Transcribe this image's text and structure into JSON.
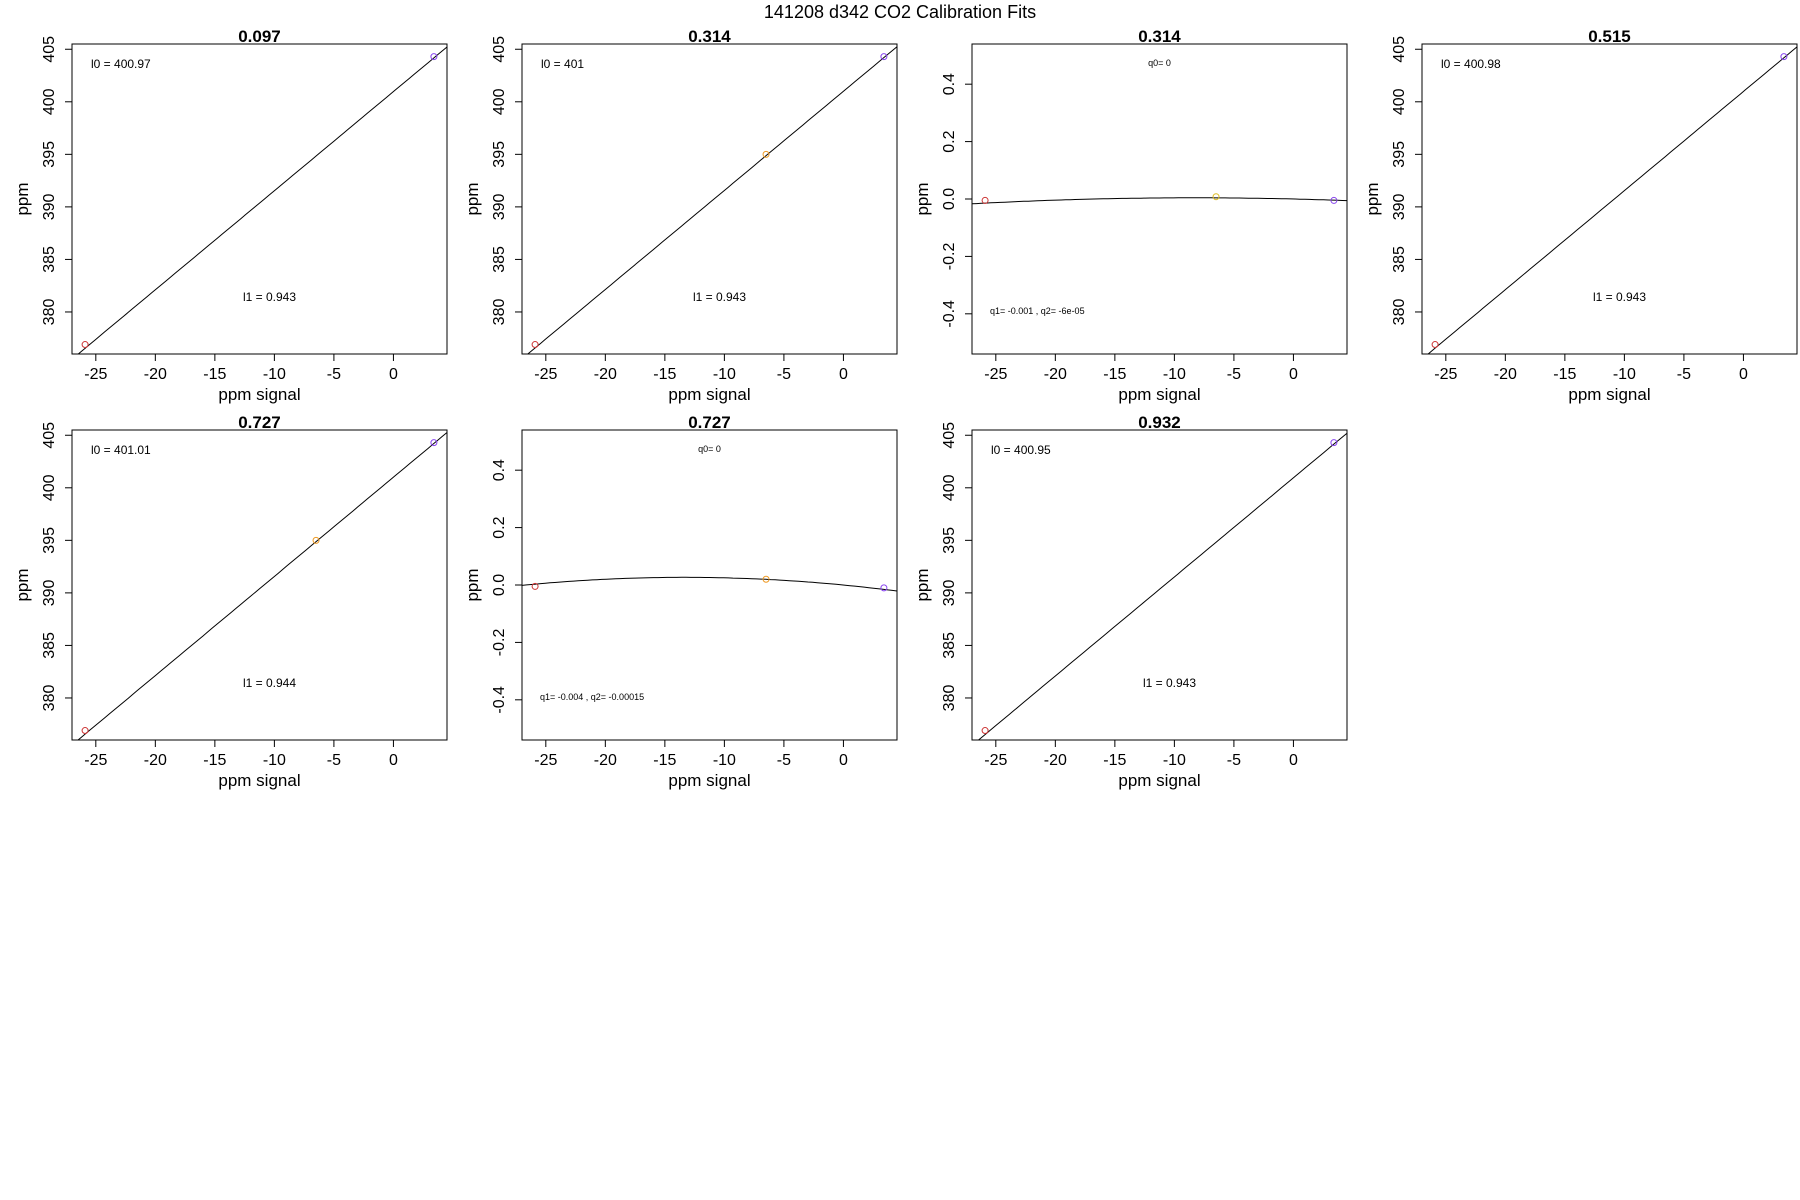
{
  "figure": {
    "title": "141208   d342   CO2 Calibration Fits"
  },
  "chart_data": [
    {
      "type": "line",
      "fit": "linear",
      "title": "0.097",
      "xlabel": "ppm signal",
      "ylabel": "ppm",
      "xlim": [
        -27,
        4.5
      ],
      "ylim": [
        376,
        405.5
      ],
      "xticks": [
        -25,
        -20,
        -15,
        -10,
        -5,
        0
      ],
      "yticks": [
        380,
        385,
        390,
        395,
        400,
        405
      ],
      "points": [
        {
          "x": -25.9,
          "y": 376.9,
          "color": "#cc3333"
        },
        {
          "x": 3.4,
          "y": 404.3,
          "color": "#8844ee"
        }
      ],
      "curve": {
        "intercept": 400.97,
        "slope": 0.943
      },
      "annotations": [
        {
          "text": "l0 =  400.97",
          "pos": "top-left"
        },
        {
          "text": "l1 =  0.943",
          "pos": "bottom-center"
        }
      ]
    },
    {
      "type": "line",
      "fit": "linear",
      "title": "0.314",
      "xlabel": "ppm signal",
      "ylabel": "ppm",
      "xlim": [
        -27,
        4.5
      ],
      "ylim": [
        376,
        405.5
      ],
      "xticks": [
        -25,
        -20,
        -15,
        -10,
        -5,
        0
      ],
      "yticks": [
        380,
        385,
        390,
        395,
        400,
        405
      ],
      "points": [
        {
          "x": -25.9,
          "y": 376.9,
          "color": "#cc3333"
        },
        {
          "x": -6.5,
          "y": 395.0,
          "color": "#ee9922"
        },
        {
          "x": 3.4,
          "y": 404.3,
          "color": "#8844ee"
        }
      ],
      "curve": {
        "intercept": 401,
        "slope": 0.943
      },
      "annotations": [
        {
          "text": "l0 =  401",
          "pos": "top-left"
        },
        {
          "text": "l1 =  0.943",
          "pos": "bottom-center"
        }
      ]
    },
    {
      "type": "line",
      "fit": "quadratic",
      "title": "0.314",
      "xlabel": "ppm signal",
      "ylabel": "ppm",
      "xlim": [
        -27,
        4.5
      ],
      "ylim": [
        -0.54,
        0.54
      ],
      "xticks": [
        -25,
        -20,
        -15,
        -10,
        -5,
        0
      ],
      "yticks": [
        -0.4,
        -0.2,
        0.0,
        0.2,
        0.4
      ],
      "points": [
        {
          "x": -25.9,
          "y": -0.005,
          "color": "#cc3333"
        },
        {
          "x": -6.5,
          "y": 0.008,
          "color": "#ddbb22"
        },
        {
          "x": 3.4,
          "y": -0.005,
          "color": "#8844ee"
        }
      ],
      "curve": {
        "q0": 0,
        "q1": -0.001,
        "q2": -6e-05
      },
      "annotations": [
        {
          "text": "q0= 0",
          "pos": "top-center"
        },
        {
          "text": "q1= -0.001 , q2= -6e-05",
          "pos": "bottom-left"
        }
      ]
    },
    {
      "type": "line",
      "fit": "linear",
      "title": "0.515",
      "xlabel": "ppm signal",
      "ylabel": "ppm",
      "xlim": [
        -27,
        4.5
      ],
      "ylim": [
        376,
        405.5
      ],
      "xticks": [
        -25,
        -20,
        -15,
        -10,
        -5,
        0
      ],
      "yticks": [
        380,
        385,
        390,
        395,
        400,
        405
      ],
      "points": [
        {
          "x": -25.9,
          "y": 376.9,
          "color": "#cc3333"
        },
        {
          "x": 3.4,
          "y": 404.3,
          "color": "#8844ee"
        }
      ],
      "curve": {
        "intercept": 400.98,
        "slope": 0.943
      },
      "annotations": [
        {
          "text": "l0 =  400.98",
          "pos": "top-left"
        },
        {
          "text": "l1 =  0.943",
          "pos": "bottom-center"
        }
      ]
    },
    {
      "type": "line",
      "fit": "linear",
      "title": "0.727",
      "xlabel": "ppm signal",
      "ylabel": "ppm",
      "xlim": [
        -27,
        4.5
      ],
      "ylim": [
        376,
        405.5
      ],
      "xticks": [
        -25,
        -20,
        -15,
        -10,
        -5,
        0
      ],
      "yticks": [
        380,
        385,
        390,
        395,
        400,
        405
      ],
      "points": [
        {
          "x": -25.9,
          "y": 376.9,
          "color": "#cc3333"
        },
        {
          "x": -6.5,
          "y": 395.0,
          "color": "#ee9922"
        },
        {
          "x": 3.4,
          "y": 404.3,
          "color": "#8844ee"
        }
      ],
      "curve": {
        "intercept": 401.01,
        "slope": 0.944
      },
      "annotations": [
        {
          "text": "l0 =  401.01",
          "pos": "top-left"
        },
        {
          "text": "l1 =  0.944",
          "pos": "bottom-center"
        }
      ]
    },
    {
      "type": "line",
      "fit": "quadratic",
      "title": "0.727",
      "xlabel": "ppm signal",
      "ylabel": "ppm",
      "xlim": [
        -27,
        4.5
      ],
      "ylim": [
        -0.54,
        0.54
      ],
      "xticks": [
        -25,
        -20,
        -15,
        -10,
        -5,
        0
      ],
      "yticks": [
        -0.4,
        -0.2,
        0.0,
        0.2,
        0.4
      ],
      "points": [
        {
          "x": -25.9,
          "y": -0.005,
          "color": "#cc3333"
        },
        {
          "x": -6.5,
          "y": 0.02,
          "color": "#ee9922"
        },
        {
          "x": 3.4,
          "y": -0.01,
          "color": "#8844ee"
        }
      ],
      "curve": {
        "q0": 0,
        "q1": -0.004,
        "q2": -0.00015
      },
      "annotations": [
        {
          "text": "q0= 0",
          "pos": "top-center"
        },
        {
          "text": "q1= -0.004 , q2= -0.00015",
          "pos": "bottom-left"
        }
      ]
    },
    {
      "type": "line",
      "fit": "linear",
      "title": "0.932",
      "xlabel": "ppm signal",
      "ylabel": "ppm",
      "xlim": [
        -27,
        4.5
      ],
      "ylim": [
        376,
        405.5
      ],
      "xticks": [
        -25,
        -20,
        -15,
        -10,
        -5,
        0
      ],
      "yticks": [
        380,
        385,
        390,
        395,
        400,
        405
      ],
      "points": [
        {
          "x": -25.9,
          "y": 376.9,
          "color": "#cc3333"
        },
        {
          "x": 3.4,
          "y": 404.3,
          "color": "#8844ee"
        }
      ],
      "curve": {
        "intercept": 400.95,
        "slope": 0.943
      },
      "annotations": [
        {
          "text": "l0 =  400.95",
          "pos": "top-left"
        },
        {
          "text": "l1 =  0.943",
          "pos": "bottom-center"
        }
      ]
    }
  ]
}
